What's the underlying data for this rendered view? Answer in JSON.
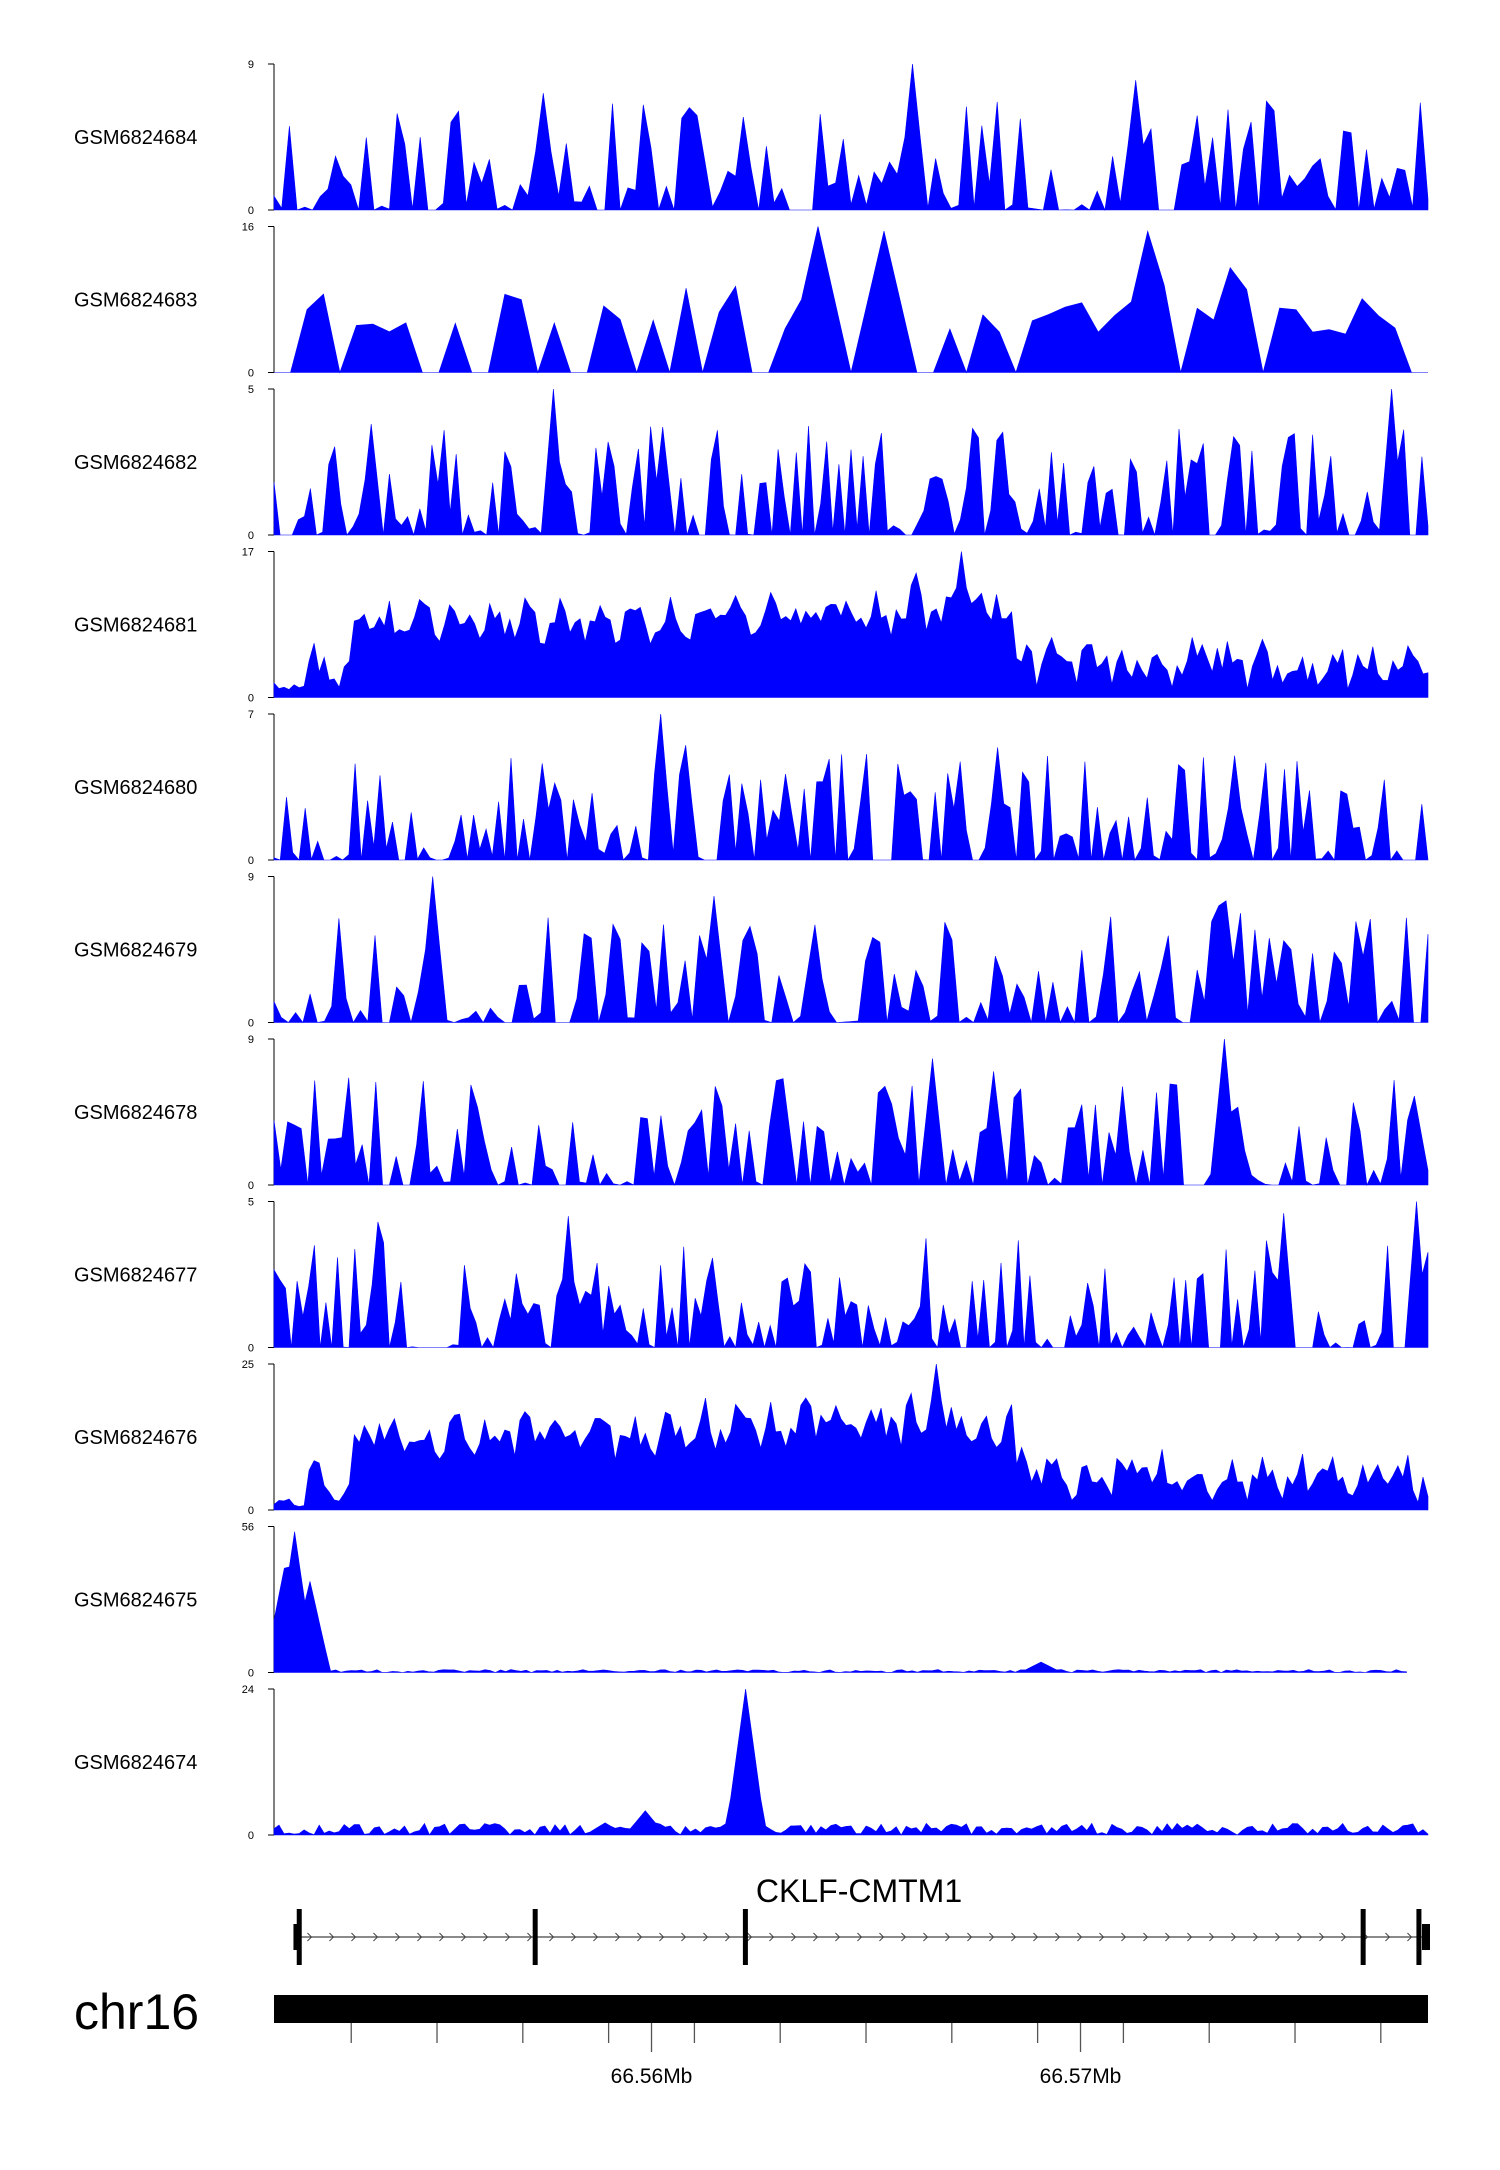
{
  "colors": {
    "signal": "#0000ff",
    "axis": "#000000",
    "background": "#ffffff"
  },
  "chart_data": {
    "type": "area",
    "chromosome": "chr16",
    "x_range_mb": [
      66.5512,
      66.5781
    ],
    "xaxis": {
      "major_ticks": [
        {
          "value": 66.56,
          "label": "66.56Mb"
        },
        {
          "value": 66.57,
          "label": "66.57Mb"
        }
      ],
      "minor_ticks": [
        66.553,
        66.555,
        66.557,
        66.559,
        66.561,
        66.563,
        66.565,
        66.567,
        66.569,
        66.571,
        66.573,
        66.575,
        66.577
      ]
    },
    "gene": {
      "name": "CKLF-CMTM1",
      "strand": "+",
      "start": 66.5517,
      "end": 66.5781,
      "exons": [
        66.5518,
        66.5573,
        66.5622,
        66.5766,
        66.5779
      ]
    },
    "tracks": [
      {
        "name": "GSM6824684",
        "ymax": 9,
        "shape": "spiky",
        "seed": 11,
        "n": 150,
        "peaks": [
          [
            66.566,
            9
          ],
          [
            66.5574,
            7.2
          ],
          [
            66.5712,
            8.0
          ]
        ]
      },
      {
        "name": "GSM6824683",
        "ymax": 16,
        "shape": "sparse",
        "seed": 23,
        "n": 70,
        "peaks": [
          [
            66.564,
            16
          ],
          [
            66.5653,
            15.5
          ],
          [
            66.5716,
            15.5
          ],
          [
            66.5733,
            11.5
          ]
        ]
      },
      {
        "name": "GSM6824682",
        "ymax": 5,
        "shape": "spiky",
        "seed": 37,
        "n": 190,
        "peaks": [
          [
            66.5577,
            5
          ],
          [
            66.5773,
            5
          ],
          [
            66.5535,
            3.8
          ],
          [
            66.5602,
            3.7
          ]
        ]
      },
      {
        "name": "GSM6824681",
        "ymax": 17,
        "shape": "broad",
        "seed": 41,
        "n": 230,
        "peaks": [
          [
            66.5672,
            17
          ],
          [
            66.5662,
            14.5
          ],
          [
            66.568,
            12.0
          ]
        ]
      },
      {
        "name": "GSM6824680",
        "ymax": 7,
        "shape": "spiky",
        "seed": 53,
        "n": 185,
        "peaks": [
          [
            66.5602,
            7
          ],
          [
            66.5608,
            5.5
          ],
          [
            66.5681,
            5.4
          ],
          [
            66.5736,
            5.0
          ]
        ]
      },
      {
        "name": "GSM6824679",
        "ymax": 9,
        "shape": "spiky",
        "seed": 67,
        "n": 160,
        "peaks": [
          [
            66.5549,
            9
          ],
          [
            66.5614,
            7.8
          ],
          [
            66.5734,
            7.5
          ],
          [
            66.5733,
            7.2
          ]
        ]
      },
      {
        "name": "GSM6824678",
        "ymax": 9,
        "shape": "spiky",
        "seed": 71,
        "n": 170,
        "peaks": [
          [
            66.5733,
            9
          ],
          [
            66.5665,
            7.8
          ],
          [
            66.5679,
            7.0
          ],
          [
            66.563,
            6.5
          ]
        ]
      },
      {
        "name": "GSM6824677",
        "ymax": 5,
        "shape": "spiky",
        "seed": 83,
        "n": 200,
        "peaks": [
          [
            66.5778,
            5
          ],
          [
            66.558,
            4.5
          ],
          [
            66.5747,
            4.6
          ],
          [
            66.5536,
            4.3
          ]
        ]
      },
      {
        "name": "GSM6824676",
        "ymax": 25,
        "shape": "broad",
        "seed": 97,
        "n": 230,
        "peaks": [
          [
            66.5666,
            25
          ],
          [
            66.566,
            20
          ],
          [
            66.5604,
            15
          ],
          [
            66.5672,
            16
          ]
        ]
      },
      {
        "name": "GSM6824675",
        "ymax": 56,
        "shape": "decay",
        "seed": 101,
        "n": 220,
        "end_mb": 66.5776,
        "peaks": [
          [
            66.5517,
            54
          ],
          [
            66.5514,
            40
          ],
          [
            66.552,
            35
          ],
          [
            66.5691,
            4
          ]
        ]
      },
      {
        "name": "GSM6824674",
        "ymax": 24,
        "shape": "lowpeak",
        "seed": 113,
        "n": 230,
        "peaks": [
          [
            66.5622,
            24
          ],
          [
            66.5598,
            4
          ],
          [
            66.5589,
            2
          ]
        ]
      }
    ]
  }
}
